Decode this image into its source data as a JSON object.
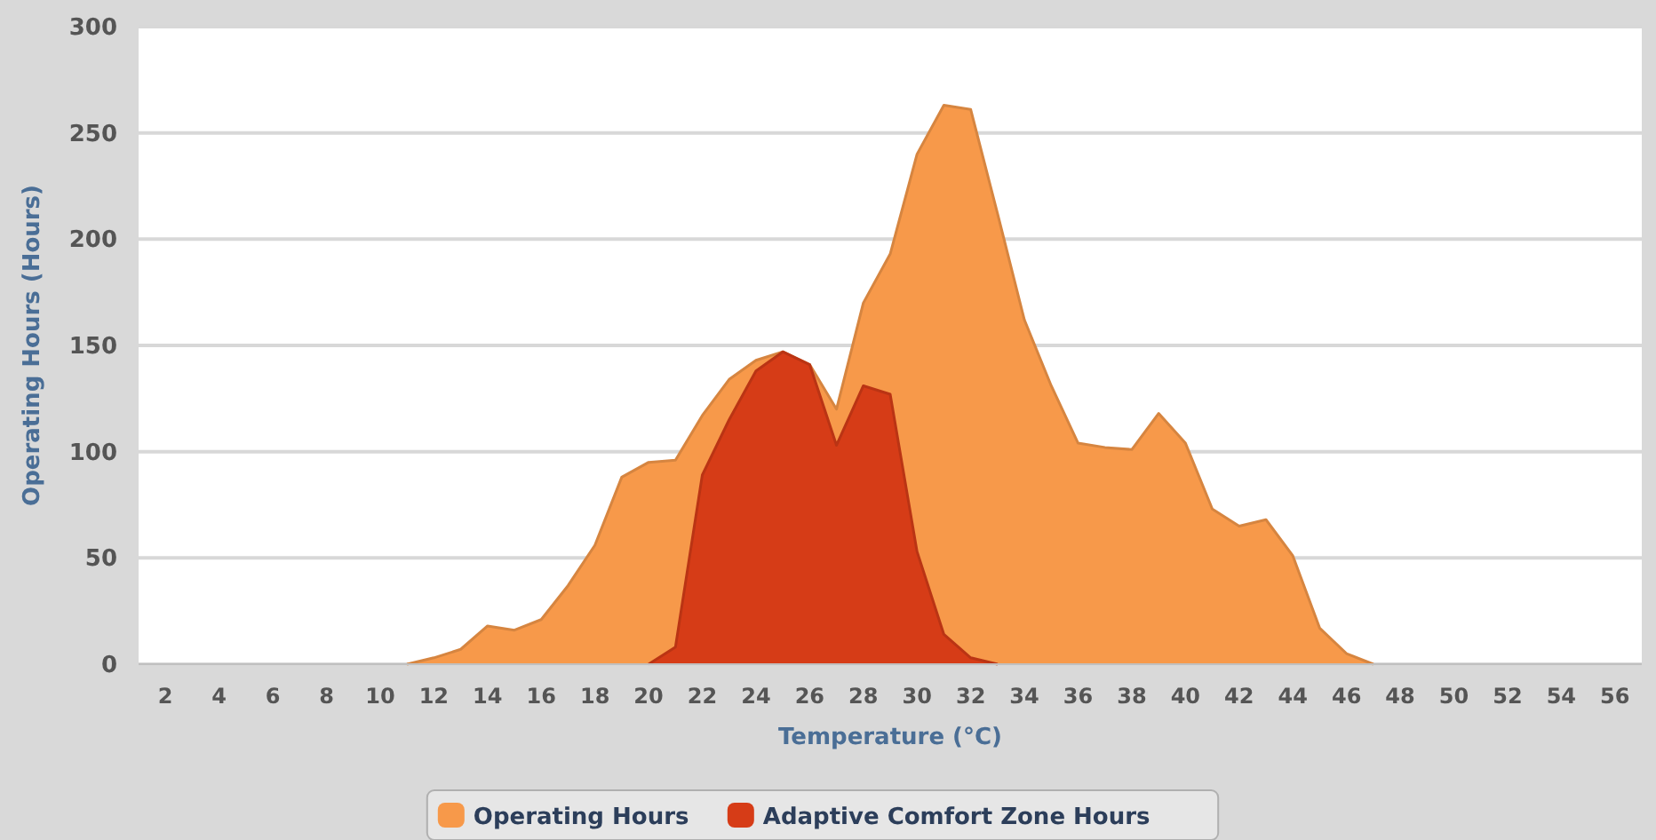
{
  "chart_data": {
    "type": "area",
    "xlabel": "Temperature (°C)",
    "ylabel": "Operating Hours (Hours)",
    "xlim": [
      1,
      57
    ],
    "xticks": [
      2,
      4,
      6,
      8,
      10,
      12,
      14,
      16,
      18,
      20,
      22,
      24,
      26,
      28,
      30,
      32,
      34,
      36,
      38,
      40,
      42,
      44,
      46,
      48,
      50,
      52,
      54,
      56
    ],
    "ylim": [
      0,
      300
    ],
    "yticks": [
      0,
      50,
      100,
      150,
      200,
      250,
      300
    ],
    "grid": "y",
    "legend": "bottom",
    "series": [
      {
        "name": "Operating Hours",
        "color": "#f7994a",
        "x": [
          11,
          12,
          13,
          14,
          15,
          16,
          17,
          18,
          19,
          20,
          21,
          22,
          23,
          24,
          25,
          26,
          27,
          28,
          29,
          30,
          31,
          32,
          33,
          34,
          35,
          36,
          37,
          38,
          39,
          40,
          41,
          42,
          43,
          44,
          45,
          46,
          47
        ],
        "values": [
          0,
          3,
          7,
          18,
          16,
          21,
          37,
          56,
          88,
          95,
          96,
          117,
          134,
          143,
          147,
          141,
          120,
          170,
          193,
          240,
          263,
          261,
          212,
          162,
          131,
          104,
          102,
          101,
          118,
          104,
          73,
          65,
          68,
          51,
          17,
          5,
          0
        ]
      },
      {
        "name": "Adaptive Comfort Zone Hours",
        "color": "#d63c17",
        "x": [
          20,
          21,
          22,
          23,
          24,
          25,
          26,
          27,
          28,
          29,
          30,
          31,
          32,
          33
        ],
        "values": [
          0,
          8,
          89,
          115,
          138,
          147,
          141,
          103,
          131,
          127,
          53,
          14,
          3,
          0
        ]
      }
    ]
  }
}
